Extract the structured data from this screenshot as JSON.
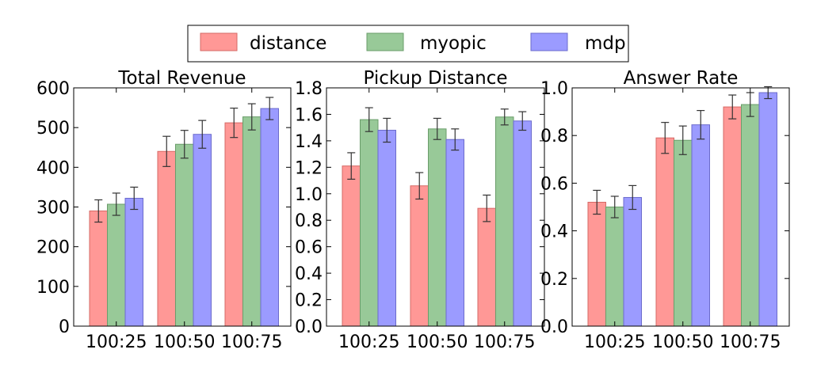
{
  "legend": {
    "placement": "top-center",
    "entries": [
      {
        "name": "distance",
        "color": "#ff9896",
        "edge": "#d66a66"
      },
      {
        "name": "myopic",
        "color": "#98c998",
        "edge": "#6a9d6a"
      },
      {
        "name": "mdp",
        "color": "#9b9bff",
        "edge": "#6b6bcc"
      }
    ]
  },
  "chart_data": [
    {
      "type": "bar",
      "title": "Total Revenue",
      "categories": [
        "100:25",
        "100:50",
        "100:75"
      ],
      "ylim": [
        0,
        600
      ],
      "yticks": [
        0,
        100,
        200,
        300,
        400,
        500,
        600
      ],
      "ytick_labels": [
        "0",
        "100",
        "200",
        "300",
        "400",
        "500",
        "600"
      ],
      "series": [
        {
          "name": "distance",
          "values": [
            290,
            440,
            512
          ],
          "errors": [
            28,
            38,
            37
          ]
        },
        {
          "name": "myopic",
          "values": [
            307,
            458,
            527
          ],
          "errors": [
            28,
            35,
            33
          ]
        },
        {
          "name": "mdp",
          "values": [
            322,
            483,
            548
          ],
          "errors": [
            28,
            35,
            28
          ]
        }
      ]
    },
    {
      "type": "bar",
      "title": "Pickup Distance",
      "categories": [
        "100:25",
        "100:50",
        "100:75"
      ],
      "ylim": [
        0,
        1.8
      ],
      "yticks": [
        0,
        0.2,
        0.4,
        0.6,
        0.8,
        1.0,
        1.2,
        1.4,
        1.6,
        1.8
      ],
      "ytick_labels": [
        "0.0",
        "0.2",
        "0.4",
        "0.6",
        "0.8",
        "1.0",
        "1.2",
        "1.4",
        "1.6",
        "1.8"
      ],
      "series": [
        {
          "name": "distance",
          "values": [
            1.21,
            1.06,
            0.89
          ],
          "errors": [
            0.1,
            0.1,
            0.1
          ]
        },
        {
          "name": "myopic",
          "values": [
            1.56,
            1.49,
            1.58
          ],
          "errors": [
            0.09,
            0.08,
            0.06
          ]
        },
        {
          "name": "mdp",
          "values": [
            1.48,
            1.41,
            1.55
          ],
          "errors": [
            0.09,
            0.08,
            0.07
          ]
        }
      ]
    },
    {
      "type": "bar",
      "title": "Answer Rate",
      "categories": [
        "100:25",
        "100:50",
        "100:75"
      ],
      "ylim": [
        0,
        1.0
      ],
      "yticks": [
        0,
        0.2,
        0.4,
        0.6,
        0.8,
        1.0
      ],
      "ytick_labels": [
        "0.0",
        "0.2",
        "0.4",
        "0.6",
        "0.8",
        "1.0"
      ],
      "series": [
        {
          "name": "distance",
          "values": [
            0.52,
            0.79,
            0.92
          ],
          "errors": [
            0.05,
            0.065,
            0.05
          ]
        },
        {
          "name": "myopic",
          "values": [
            0.5,
            0.78,
            0.93
          ],
          "errors": [
            0.045,
            0.06,
            0.05
          ]
        },
        {
          "name": "mdp",
          "values": [
            0.54,
            0.845,
            0.98
          ],
          "errors": [
            0.05,
            0.06,
            0.025
          ]
        }
      ]
    }
  ]
}
